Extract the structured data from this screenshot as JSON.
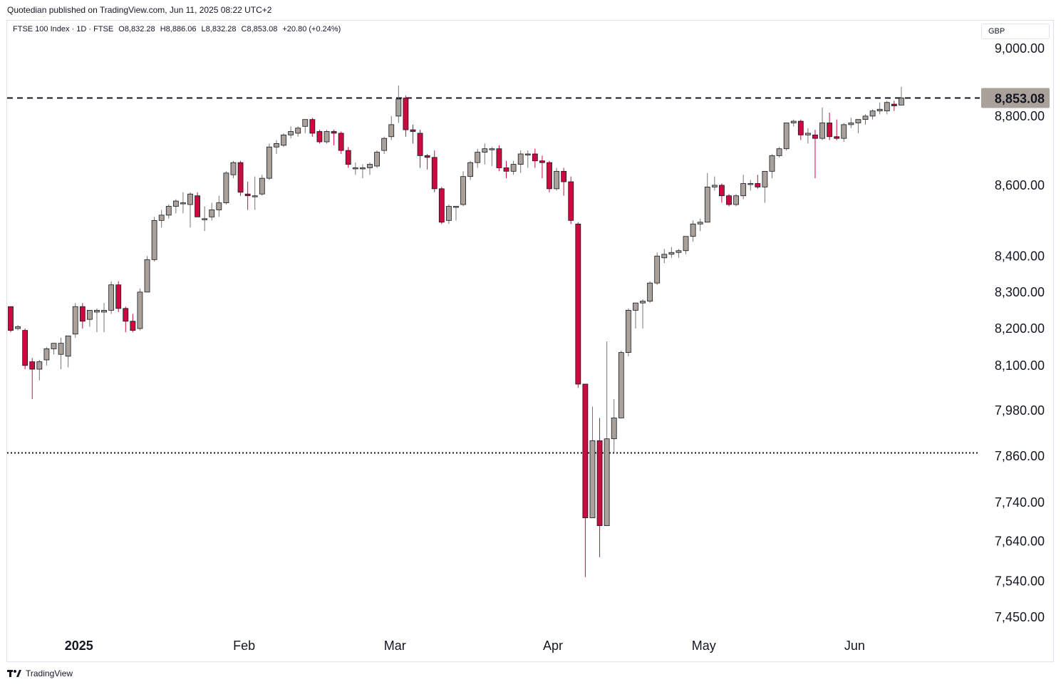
{
  "header": {
    "publisher_line": "Quotedian published on TradingView.com, Jun 11, 2025 08:22 UTC+2"
  },
  "legend": {
    "symbol": "FTSE 100 Index · 1D · FTSE",
    "open": "O8,832.28",
    "high": "H8,886.06",
    "low": "L8,832.28",
    "close": "C8,853.08",
    "change": "+20.80 (+0.24%)"
  },
  "currency": "GBP",
  "footer": {
    "brand": "TradingView"
  },
  "colors": {
    "up": "#aaa19a",
    "down": "#cc0a3f",
    "last_price_bg": "#aaa19a"
  },
  "chart_data": {
    "type": "candlestick",
    "title": "FTSE 100 Index · 1D · FTSE",
    "y_scale": "log",
    "ylim": [
      7390,
      9080
    ],
    "y_ticks": [
      "9,000.00",
      "8,800.00",
      "8,600.00",
      "8,400.00",
      "8,300.00",
      "8,200.00",
      "8,100.00",
      "7,980.00",
      "7,860.00",
      "7,740.00",
      "7,640.00",
      "7,540.00",
      "7,450.00"
    ],
    "x_ticks": [
      "2025",
      "Feb",
      "Mar",
      "Apr",
      "May",
      "Jun"
    ],
    "last_price_label": "8,853.08",
    "reference_lines": [
      {
        "style": "dashed",
        "value": 8853.08
      },
      {
        "style": "dotted",
        "value": 7868
      }
    ],
    "series": [
      {
        "o": 8260,
        "h": 8260,
        "l": 8190,
        "c": 8195
      },
      {
        "o": 8200,
        "h": 8210,
        "l": 8195,
        "c": 8205
      },
      {
        "o": 8195,
        "h": 8200,
        "l": 8090,
        "c": 8100
      },
      {
        "o": 8110,
        "h": 8120,
        "l": 8010,
        "c": 8090
      },
      {
        "o": 8090,
        "h": 8115,
        "l": 8060,
        "c": 8110
      },
      {
        "o": 8115,
        "h": 8150,
        "l": 8100,
        "c": 8145
      },
      {
        "o": 8145,
        "h": 8160,
        "l": 8130,
        "c": 8160
      },
      {
        "o": 8130,
        "h": 8175,
        "l": 8090,
        "c": 8160
      },
      {
        "o": 8125,
        "h": 8180,
        "l": 8095,
        "c": 8180
      },
      {
        "o": 8185,
        "h": 8270,
        "l": 8175,
        "c": 8260
      },
      {
        "o": 8260,
        "h": 8270,
        "l": 8200,
        "c": 8220
      },
      {
        "o": 8225,
        "h": 8250,
        "l": 8205,
        "c": 8250
      },
      {
        "o": 8245,
        "h": 8255,
        "l": 8190,
        "c": 8250
      },
      {
        "o": 8245,
        "h": 8270,
        "l": 8190,
        "c": 8250
      },
      {
        "o": 8250,
        "h": 8330,
        "l": 8240,
        "c": 8320
      },
      {
        "o": 8320,
        "h": 8330,
        "l": 8245,
        "c": 8255
      },
      {
        "o": 8255,
        "h": 8260,
        "l": 8190,
        "c": 8220
      },
      {
        "o": 8220,
        "h": 8240,
        "l": 8190,
        "c": 8195
      },
      {
        "o": 8200,
        "h": 8310,
        "l": 8195,
        "c": 8300
      },
      {
        "o": 8300,
        "h": 8400,
        "l": 8300,
        "c": 8390
      },
      {
        "o": 8390,
        "h": 8510,
        "l": 8385,
        "c": 8500
      },
      {
        "o": 8500,
        "h": 8530,
        "l": 8480,
        "c": 8515
      },
      {
        "o": 8515,
        "h": 8545,
        "l": 8505,
        "c": 8540
      },
      {
        "o": 8540,
        "h": 8560,
        "l": 8520,
        "c": 8555
      },
      {
        "o": 8550,
        "h": 8580,
        "l": 8520,
        "c": 8550
      },
      {
        "o": 8545,
        "h": 8580,
        "l": 8480,
        "c": 8575
      },
      {
        "o": 8570,
        "h": 8580,
        "l": 8510,
        "c": 8510
      },
      {
        "o": 8505,
        "h": 8540,
        "l": 8470,
        "c": 8505
      },
      {
        "o": 8510,
        "h": 8550,
        "l": 8500,
        "c": 8530
      },
      {
        "o": 8530,
        "h": 8570,
        "l": 8510,
        "c": 8550
      },
      {
        "o": 8550,
        "h": 8640,
        "l": 8545,
        "c": 8635
      },
      {
        "o": 8630,
        "h": 8670,
        "l": 8620,
        "c": 8665
      },
      {
        "o": 8665,
        "h": 8670,
        "l": 8570,
        "c": 8580
      },
      {
        "o": 8575,
        "h": 8610,
        "l": 8530,
        "c": 8570
      },
      {
        "o": 8570,
        "h": 8625,
        "l": 8530,
        "c": 8570
      },
      {
        "o": 8575,
        "h": 8630,
        "l": 8570,
        "c": 8620
      },
      {
        "o": 8620,
        "h": 8720,
        "l": 8615,
        "c": 8710
      },
      {
        "o": 8710,
        "h": 8730,
        "l": 8690,
        "c": 8720
      },
      {
        "o": 8715,
        "h": 8750,
        "l": 8710,
        "c": 8745
      },
      {
        "o": 8745,
        "h": 8770,
        "l": 8735,
        "c": 8755
      },
      {
        "o": 8750,
        "h": 8770,
        "l": 8740,
        "c": 8765
      },
      {
        "o": 8770,
        "h": 8790,
        "l": 8750,
        "c": 8790
      },
      {
        "o": 8790,
        "h": 8795,
        "l": 8740,
        "c": 8750
      },
      {
        "o": 8755,
        "h": 8760,
        "l": 8720,
        "c": 8725
      },
      {
        "o": 8725,
        "h": 8760,
        "l": 8720,
        "c": 8755
      },
      {
        "o": 8755,
        "h": 8760,
        "l": 8715,
        "c": 8750
      },
      {
        "o": 8750,
        "h": 8755,
        "l": 8690,
        "c": 8700
      },
      {
        "o": 8700,
        "h": 8710,
        "l": 8650,
        "c": 8660
      },
      {
        "o": 8650,
        "h": 8665,
        "l": 8630,
        "c": 8650
      },
      {
        "o": 8650,
        "h": 8660,
        "l": 8620,
        "c": 8650
      },
      {
        "o": 8650,
        "h": 8665,
        "l": 8630,
        "c": 8660
      },
      {
        "o": 8655,
        "h": 8700,
        "l": 8650,
        "c": 8695
      },
      {
        "o": 8700,
        "h": 8740,
        "l": 8690,
        "c": 8735
      },
      {
        "o": 8740,
        "h": 8800,
        "l": 8730,
        "c": 8775
      },
      {
        "o": 8800,
        "h": 8890,
        "l": 8780,
        "c": 8850
      },
      {
        "o": 8853,
        "h": 8860,
        "l": 8740,
        "c": 8760
      },
      {
        "o": 8760,
        "h": 8775,
        "l": 8720,
        "c": 8755
      },
      {
        "o": 8750,
        "h": 8760,
        "l": 8650,
        "c": 8685
      },
      {
        "o": 8685,
        "h": 8690,
        "l": 8645,
        "c": 8680
      },
      {
        "o": 8680,
        "h": 8700,
        "l": 8580,
        "c": 8590
      },
      {
        "o": 8590,
        "h": 8595,
        "l": 8490,
        "c": 8495
      },
      {
        "o": 8500,
        "h": 8545,
        "l": 8490,
        "c": 8540
      },
      {
        "o": 8540,
        "h": 8540,
        "l": 8500,
        "c": 8540
      },
      {
        "o": 8545,
        "h": 8640,
        "l": 8540,
        "c": 8625
      },
      {
        "o": 8625,
        "h": 8670,
        "l": 8615,
        "c": 8665
      },
      {
        "o": 8665,
        "h": 8705,
        "l": 8650,
        "c": 8695
      },
      {
        "o": 8695,
        "h": 8720,
        "l": 8660,
        "c": 8705
      },
      {
        "o": 8705,
        "h": 8710,
        "l": 8655,
        "c": 8705
      },
      {
        "o": 8705,
        "h": 8715,
        "l": 8640,
        "c": 8650
      },
      {
        "o": 8650,
        "h": 8670,
        "l": 8620,
        "c": 8640
      },
      {
        "o": 8640,
        "h": 8670,
        "l": 8630,
        "c": 8660
      },
      {
        "o": 8660,
        "h": 8700,
        "l": 8635,
        "c": 8690
      },
      {
        "o": 8690,
        "h": 8700,
        "l": 8650,
        "c": 8690
      },
      {
        "o": 8690,
        "h": 8705,
        "l": 8650,
        "c": 8670
      },
      {
        "o": 8670,
        "h": 8685,
        "l": 8620,
        "c": 8665
      },
      {
        "o": 8665,
        "h": 8670,
        "l": 8580,
        "c": 8590
      },
      {
        "o": 8590,
        "h": 8650,
        "l": 8585,
        "c": 8640
      },
      {
        "o": 8640,
        "h": 8650,
        "l": 8570,
        "c": 8610
      },
      {
        "o": 8610,
        "h": 8625,
        "l": 8490,
        "c": 8500
      },
      {
        "o": 8490,
        "h": 8495,
        "l": 8040,
        "c": 8050
      },
      {
        "o": 8050,
        "h": 8050,
        "l": 7550,
        "c": 7700
      },
      {
        "o": 7700,
        "h": 7990,
        "l": 7700,
        "c": 7900
      },
      {
        "o": 7900,
        "h": 7960,
        "l": 7600,
        "c": 7680
      },
      {
        "o": 7680,
        "h": 8165,
        "l": 7680,
        "c": 7905
      },
      {
        "o": 7905,
        "h": 8010,
        "l": 7870,
        "c": 7960
      },
      {
        "o": 7960,
        "h": 8140,
        "l": 7960,
        "c": 8135
      },
      {
        "o": 8135,
        "h": 8255,
        "l": 8125,
        "c": 8250
      },
      {
        "o": 8250,
        "h": 8270,
        "l": 8200,
        "c": 8270
      },
      {
        "o": 8270,
        "h": 8280,
        "l": 8200,
        "c": 8275
      },
      {
        "o": 8275,
        "h": 8330,
        "l": 8270,
        "c": 8325
      },
      {
        "o": 8325,
        "h": 8410,
        "l": 8320,
        "c": 8400
      },
      {
        "o": 8395,
        "h": 8420,
        "l": 8380,
        "c": 8405
      },
      {
        "o": 8405,
        "h": 8425,
        "l": 8395,
        "c": 8410
      },
      {
        "o": 8410,
        "h": 8420,
        "l": 8395,
        "c": 8415
      },
      {
        "o": 8415,
        "h": 8455,
        "l": 8405,
        "c": 8455
      },
      {
        "o": 8455,
        "h": 8500,
        "l": 8440,
        "c": 8490
      },
      {
        "o": 8490,
        "h": 8505,
        "l": 8470,
        "c": 8495
      },
      {
        "o": 8495,
        "h": 8635,
        "l": 8495,
        "c": 8595
      },
      {
        "o": 8595,
        "h": 8625,
        "l": 8585,
        "c": 8600
      },
      {
        "o": 8600,
        "h": 8605,
        "l": 8550,
        "c": 8570
      },
      {
        "o": 8570,
        "h": 8575,
        "l": 8540,
        "c": 8545
      },
      {
        "o": 8545,
        "h": 8575,
        "l": 8540,
        "c": 8570
      },
      {
        "o": 8570,
        "h": 8630,
        "l": 8560,
        "c": 8605
      },
      {
        "o": 8605,
        "h": 8615,
        "l": 8585,
        "c": 8605
      },
      {
        "o": 8605,
        "h": 8630,
        "l": 8590,
        "c": 8595
      },
      {
        "o": 8595,
        "h": 8640,
        "l": 8550,
        "c": 8640
      },
      {
        "o": 8640,
        "h": 8690,
        "l": 8620,
        "c": 8685
      },
      {
        "o": 8685,
        "h": 8710,
        "l": 8680,
        "c": 8705
      },
      {
        "o": 8705,
        "h": 8780,
        "l": 8700,
        "c": 8780
      },
      {
        "o": 8780,
        "h": 8790,
        "l": 8770,
        "c": 8785
      },
      {
        "o": 8785,
        "h": 8790,
        "l": 8730,
        "c": 8745
      },
      {
        "o": 8745,
        "h": 8765,
        "l": 8720,
        "c": 8750
      },
      {
        "o": 8745,
        "h": 8760,
        "l": 8620,
        "c": 8735
      },
      {
        "o": 8735,
        "h": 8825,
        "l": 8730,
        "c": 8780
      },
      {
        "o": 8780,
        "h": 8810,
        "l": 8730,
        "c": 8740
      },
      {
        "o": 8740,
        "h": 8790,
        "l": 8730,
        "c": 8735
      },
      {
        "o": 8735,
        "h": 8780,
        "l": 8725,
        "c": 8775
      },
      {
        "o": 8775,
        "h": 8795,
        "l": 8765,
        "c": 8780
      },
      {
        "o": 8780,
        "h": 8790,
        "l": 8750,
        "c": 8790
      },
      {
        "o": 8790,
        "h": 8805,
        "l": 8775,
        "c": 8800
      },
      {
        "o": 8800,
        "h": 8820,
        "l": 8790,
        "c": 8815
      },
      {
        "o": 8815,
        "h": 8840,
        "l": 8805,
        "c": 8820
      },
      {
        "o": 8815,
        "h": 8845,
        "l": 8805,
        "c": 8840
      },
      {
        "o": 8835,
        "h": 8845,
        "l": 8815,
        "c": 8830
      },
      {
        "o": 8832.28,
        "h": 8886.06,
        "l": 8832.28,
        "c": 8853.08
      }
    ]
  }
}
